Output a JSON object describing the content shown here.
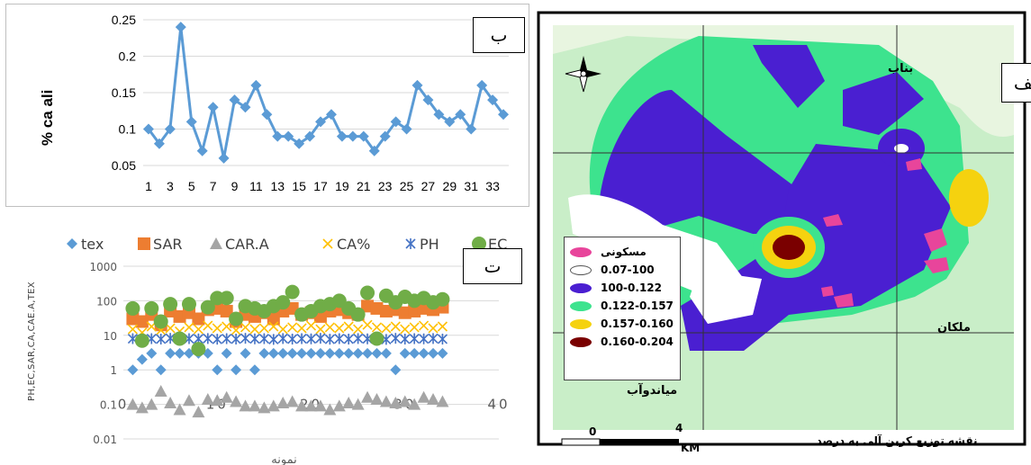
{
  "chart_data": [
    {
      "type": "line",
      "panel_label": "ب",
      "ylabel": "% ca ali",
      "xlabel": "",
      "ylim": [
        0.05,
        0.25
      ],
      "yticks": [
        "0.05",
        "0.1",
        "0.15",
        "0.2",
        "0.25"
      ],
      "xtick_labels": [
        "1",
        "3",
        "5",
        "7",
        "9",
        "11",
        "13",
        "15",
        "17",
        "19",
        "21",
        "23",
        "25",
        "27",
        "29",
        "31",
        "33"
      ],
      "grid": true,
      "color": "#5b9bd5",
      "x": [
        1,
        2,
        3,
        4,
        5,
        6,
        7,
        8,
        9,
        10,
        11,
        12,
        13,
        14,
        15,
        16,
        17,
        18,
        19,
        20,
        21,
        22,
        23,
        24,
        25,
        26,
        27,
        28,
        29,
        30,
        31,
        32,
        33,
        34
      ],
      "values": [
        0.1,
        0.08,
        0.1,
        0.24,
        0.11,
        0.07,
        0.13,
        0.06,
        0.14,
        0.13,
        0.16,
        0.12,
        0.09,
        0.09,
        0.08,
        0.09,
        0.11,
        0.12,
        0.09,
        0.09,
        0.09,
        0.07,
        0.09,
        0.11,
        0.1,
        0.16,
        0.14,
        0.12,
        0.11,
        0.12,
        0.1,
        0.16,
        0.14,
        0.12
      ]
    },
    {
      "type": "scatter",
      "panel_label": "ت",
      "ylabel": "PH,EC,SAR,CA,CAE.A,TEX",
      "xlabel": "نمونه",
      "xlim": [
        0,
        40
      ],
      "xticks": [
        "0",
        "10",
        "20",
        "30",
        "40"
      ],
      "yscale": "log",
      "ylim": [
        0.01,
        1000
      ],
      "yticks": [
        "0.01",
        "0.1",
        "1",
        "10",
        "100",
        "1000"
      ],
      "grid": true,
      "legend_position": "top",
      "series": [
        {
          "name": "tex",
          "marker": "diamond",
          "color": "#5b9bd5",
          "x": [
            1,
            2,
            3,
            4,
            5,
            6,
            7,
            8,
            9,
            10,
            11,
            12,
            13,
            14,
            15,
            16,
            17,
            18,
            19,
            20,
            21,
            22,
            23,
            24,
            25,
            26,
            27,
            28,
            29,
            30,
            31,
            32,
            33,
            34
          ],
          "values": [
            1,
            2,
            3,
            1,
            3,
            3,
            3,
            3,
            3,
            1,
            3,
            1,
            3,
            1,
            3,
            3,
            3,
            3,
            3,
            3,
            3,
            3,
            3,
            3,
            3,
            3,
            3,
            3,
            1,
            3,
            3,
            3,
            3,
            3
          ]
        },
        {
          "name": "SAR",
          "marker": "square",
          "color": "#ed7d31",
          "x": [
            1,
            2,
            3,
            4,
            5,
            6,
            7,
            8,
            9,
            10,
            11,
            12,
            13,
            14,
            15,
            16,
            17,
            18,
            19,
            20,
            21,
            22,
            23,
            24,
            25,
            26,
            27,
            28,
            29,
            30,
            31,
            32,
            33,
            34
          ],
          "values": [
            30,
            25,
            40,
            20,
            50,
            35,
            45,
            30,
            55,
            60,
            50,
            25,
            40,
            35,
            45,
            30,
            50,
            60,
            40,
            45,
            35,
            50,
            55,
            45,
            40,
            70,
            60,
            50,
            55,
            45,
            50,
            60,
            55,
            65
          ]
        },
        {
          "name": "CAR.A",
          "marker": "triangle",
          "color": "#a5a5a5",
          "x": [
            1,
            2,
            3,
            4,
            5,
            6,
            7,
            8,
            9,
            10,
            11,
            12,
            13,
            14,
            15,
            16,
            17,
            18,
            19,
            20,
            21,
            22,
            23,
            24,
            25,
            26,
            27,
            28,
            29,
            30,
            31,
            32,
            33,
            34
          ],
          "values": [
            0.1,
            0.08,
            0.1,
            0.24,
            0.11,
            0.07,
            0.13,
            0.06,
            0.14,
            0.13,
            0.16,
            0.12,
            0.09,
            0.09,
            0.08,
            0.09,
            0.11,
            0.12,
            0.09,
            0.09,
            0.09,
            0.07,
            0.09,
            0.11,
            0.1,
            0.16,
            0.14,
            0.12,
            0.11,
            0.12,
            0.1,
            0.16,
            0.14,
            0.12
          ]
        },
        {
          "name": "CA%",
          "marker": "x",
          "color": "#ffc000",
          "x": [
            1,
            2,
            3,
            4,
            5,
            6,
            7,
            8,
            9,
            10,
            11,
            12,
            13,
            14,
            15,
            16,
            17,
            18,
            19,
            20,
            21,
            22,
            23,
            24,
            25,
            26,
            27,
            28,
            29,
            30,
            31,
            32,
            33,
            34
          ],
          "values": [
            15,
            12,
            18,
            14,
            16,
            13,
            17,
            15,
            19,
            16,
            18,
            14,
            17,
            15,
            16,
            18,
            15,
            17,
            16,
            19,
            15,
            17,
            16,
            18,
            15,
            20,
            17,
            16,
            18,
            15,
            17,
            19,
            16,
            18
          ]
        },
        {
          "name": "PH",
          "marker": "asterisk",
          "color": "#4472c4",
          "x": [
            1,
            2,
            3,
            4,
            5,
            6,
            7,
            8,
            9,
            10,
            11,
            12,
            13,
            14,
            15,
            16,
            17,
            18,
            19,
            20,
            21,
            22,
            23,
            24,
            25,
            26,
            27,
            28,
            29,
            30,
            31,
            32,
            33,
            34
          ],
          "values": [
            8,
            7.5,
            8,
            7.8,
            8.2,
            7.6,
            8,
            7.9,
            8.1,
            7.7,
            8,
            7.8,
            8.2,
            7.9,
            8,
            7.6,
            8.1,
            7.8,
            8,
            7.9,
            8.2,
            7.7,
            8,
            7.8,
            8.1,
            7.9,
            8,
            7.6,
            8.2,
            7.8,
            8,
            7.9,
            8.1,
            7.8
          ]
        },
        {
          "name": "EC",
          "marker": "circle",
          "color": "#70ad47",
          "x": [
            1,
            2,
            3,
            4,
            5,
            6,
            7,
            8,
            9,
            10,
            11,
            12,
            13,
            14,
            15,
            16,
            17,
            18,
            19,
            20,
            21,
            22,
            23,
            24,
            25,
            26,
            27,
            28,
            29,
            30,
            31,
            32,
            33,
            34
          ],
          "values": [
            60,
            7,
            60,
            25,
            80,
            8,
            80,
            4,
            65,
            120,
            120,
            30,
            70,
            60,
            50,
            70,
            90,
            180,
            40,
            50,
            70,
            80,
            100,
            60,
            40,
            170,
            8,
            140,
            90,
            130,
            100,
            120,
            90,
            110
          ]
        }
      ]
    }
  ],
  "map": {
    "panel_label": "الف",
    "legend_items": [
      {
        "label": "مسکونی",
        "color": "#e8459b"
      },
      {
        "label": "0.07-100",
        "color": "#ffffff"
      },
      {
        "label": "100-0.122",
        "color": "#4a1fd1"
      },
      {
        "label": "0.122-0.157",
        "color": "#3de38e"
      },
      {
        "label": "0.157-0.160",
        "color": "#f5d20f"
      },
      {
        "label": "0.160-0.204",
        "color": "#7a0000"
      }
    ],
    "place_bonab": "بناب",
    "place_malekan": "ملکان",
    "place_miandoab": "میاندوآب",
    "scale_zero": "0",
    "scale_four": "4",
    "scale_unit": "KM",
    "map_title": "نقشه توزیع کربن آلی به درصد"
  }
}
